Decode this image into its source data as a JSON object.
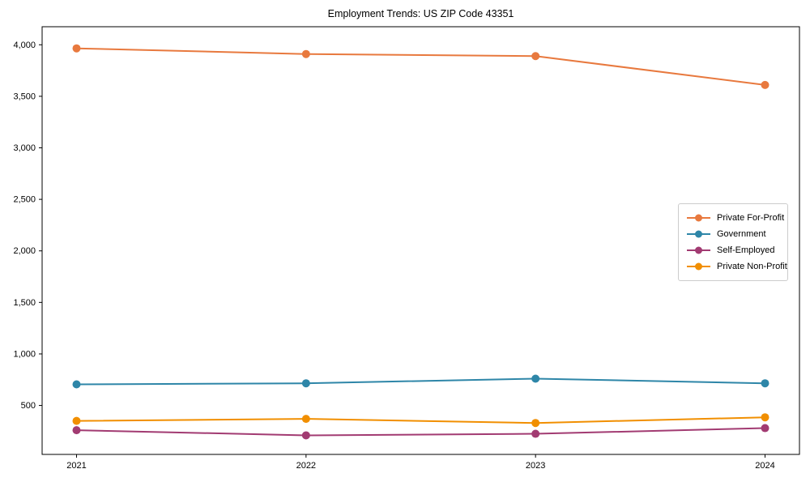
{
  "page": {
    "background_color": "#ffffff",
    "spine_color": "#000000",
    "legend_border_color": "#cccccc"
  },
  "chart_data": {
    "type": "line",
    "title": "Employment Trends: US ZIP Code 43351",
    "xlabel": "",
    "ylabel": "",
    "x": [
      2021,
      2022,
      2023,
      2024
    ],
    "x_tick_labels": [
      "2021",
      "2022",
      "2023",
      "2024"
    ],
    "series": [
      {
        "name": "Private For-Profit",
        "color": "#E8793E",
        "values": [
          3965,
          3910,
          3890,
          3610
        ]
      },
      {
        "name": "Government",
        "color": "#2E86A8",
        "values": [
          705,
          715,
          760,
          715
        ]
      },
      {
        "name": "Self-Employed",
        "color": "#A23B72",
        "values": [
          260,
          210,
          225,
          280
        ]
      },
      {
        "name": "Private Non-Profit",
        "color": "#F18F01",
        "values": [
          350,
          370,
          330,
          385
        ]
      }
    ],
    "xlim": [
      2020.85,
      2024.15
    ],
    "ylim": [
      25,
      4175
    ],
    "yticks": [
      500,
      1000,
      1500,
      2000,
      2500,
      3000,
      3500,
      4000
    ],
    "ytick_labels": [
      "500",
      "1,000",
      "1,500",
      "2,000",
      "2,500",
      "3,000",
      "3,500",
      "4,000"
    ],
    "grid": false,
    "legend_position": "center-right",
    "marker": "circle"
  }
}
